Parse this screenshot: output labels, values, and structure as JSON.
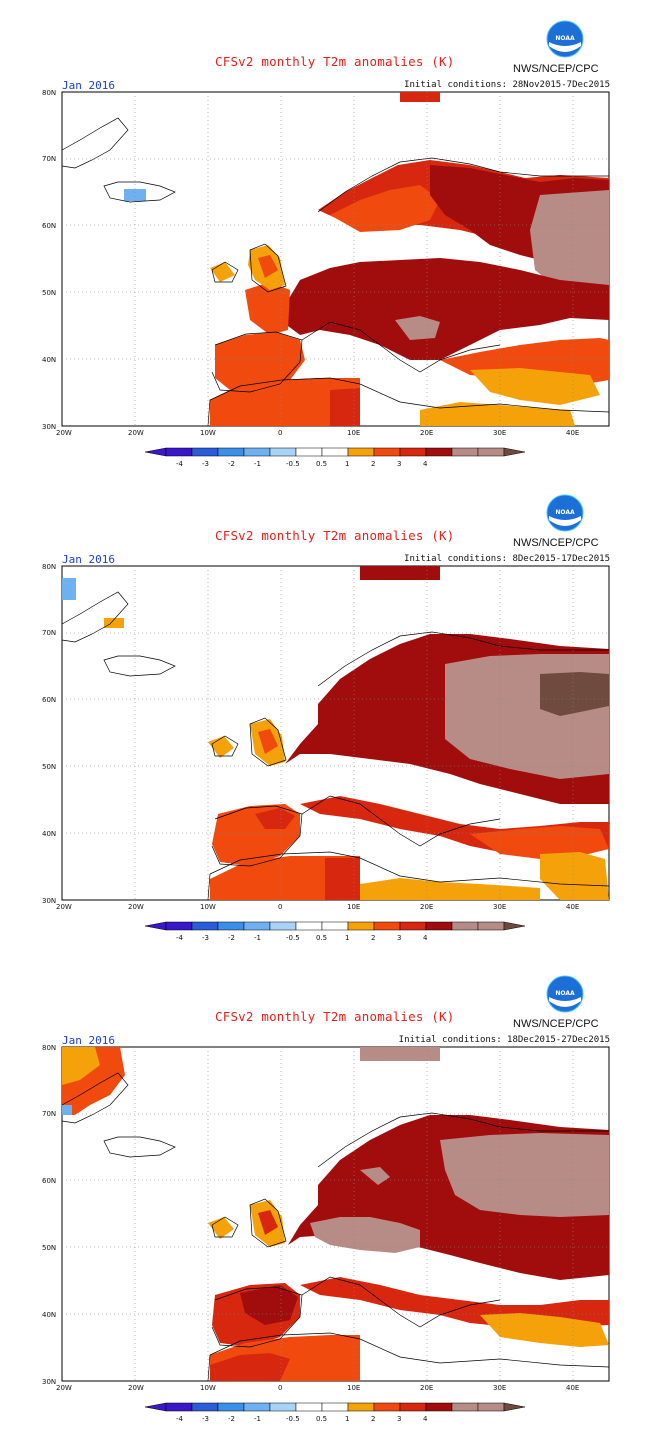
{
  "agency": "NWS/NCEP/CPC",
  "logo_text": "NOAA",
  "colorbar": {
    "labels": [
      "-4",
      "-3",
      "-2",
      "-1",
      "-0.5",
      "0.5",
      "1",
      "2",
      "3",
      "4"
    ],
    "colors": [
      "#3a17c9",
      "#2a5ed8",
      "#3a8fe8",
      "#6eb0f0",
      "#a9d2f7",
      "#ffffff",
      "#f5a10a",
      "#f04a0e",
      "#d8270f",
      "#a10d0d",
      "#b88c86",
      "#6f4a3e"
    ]
  },
  "axes": {
    "x_ticks": [
      "20W",
      "20W",
      "10W",
      "0",
      "10E",
      "20E",
      "30E",
      "40E"
    ],
    "y_ticks": [
      "80N",
      "70N",
      "60N",
      "50N",
      "40N",
      "30N"
    ]
  },
  "panels": [
    {
      "title": "CFSv2 monthly T2m anomalies (K)",
      "month": "Jan 2016",
      "initial_conditions": "Initial conditions: 28Nov2015-7Dec2015"
    },
    {
      "title": "CFSv2 monthly T2m anomalies (K)",
      "month": "Jan 2016",
      "initial_conditions": "Initial conditions: 8Dec2015-17Dec2015"
    },
    {
      "title": "CFSv2 monthly T2m anomalies (K)",
      "month": "Jan 2016",
      "initial_conditions": "Initial conditions: 18Dec2015-27Dec2015"
    }
  ]
}
